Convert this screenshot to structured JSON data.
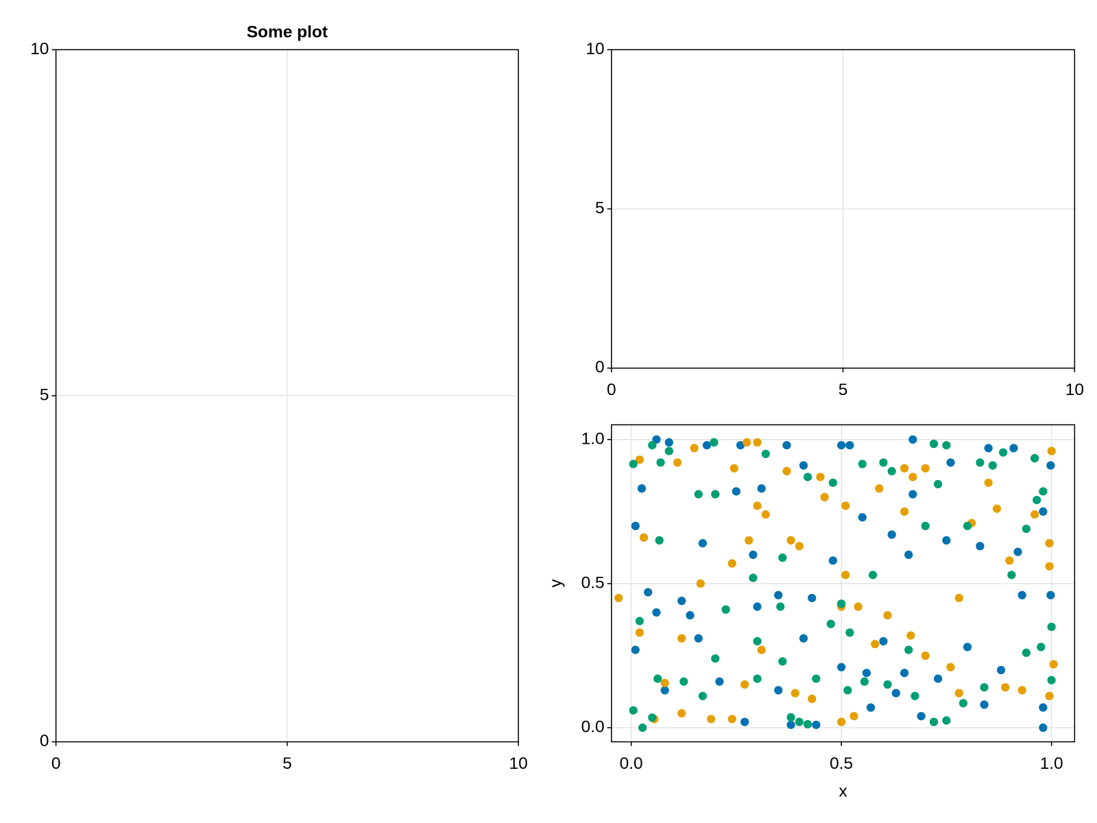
{
  "chart_data": [
    {
      "type": "scatter",
      "title": "Some plot",
      "xlim": [
        0,
        10
      ],
      "ylim": [
        0,
        10
      ],
      "xticks": [
        0,
        5,
        10
      ],
      "yticks": [
        0,
        5,
        10
      ],
      "grid": true,
      "series": []
    },
    {
      "type": "scatter",
      "xlim": [
        0,
        10
      ],
      "ylim": [
        0,
        10
      ],
      "xticks": [
        0,
        5,
        10
      ],
      "yticks": [
        0,
        5,
        10
      ],
      "grid": true,
      "series": []
    },
    {
      "type": "scatter",
      "x_label": "x",
      "y_label": "y",
      "xlim": [
        -0.047,
        1.055
      ],
      "ylim": [
        -0.049,
        1.051
      ],
      "xticks": [
        {
          "value": 0,
          "label": "0.0"
        },
        {
          "value": 0.5,
          "label": "0.5"
        },
        {
          "value": 1,
          "label": "1.0"
        }
      ],
      "yticks": [
        {
          "value": 0,
          "label": "0.0"
        },
        {
          "value": 0.5,
          "label": "0.5"
        },
        {
          "value": 1,
          "label": "1.0"
        }
      ],
      "grid": true,
      "series": [
        {
          "color": "#0072b2",
          "x": [
            0.06,
            0.09,
            0.025,
            0.01,
            0.01,
            0.04,
            0.06,
            0.08,
            0.18,
            0.26,
            0.25,
            0.31,
            0.37,
            0.41,
            0.5,
            0.52,
            0.67,
            0.67,
            0.76,
            0.85,
            0.91,
            0.998,
            0.98,
            0.998,
            0.98,
            0.98,
            0.88,
            0.8,
            0.73,
            0.65,
            0.56,
            0.5,
            0.5,
            0.48,
            0.43,
            0.41,
            0.35,
            0.44,
            0.38,
            0.27,
            0.21,
            0.16,
            0.14,
            0.12,
            0.17,
            0.29,
            0.35,
            0.55,
            0.62,
            0.66,
            0.75,
            0.83,
            0.92,
            0.93,
            0.6,
            0.63,
            0.69,
            0.84,
            0.3,
            0.57
          ],
          "values": [
            1.0,
            0.99,
            0.83,
            0.7,
            0.27,
            0.47,
            0.4,
            0.13,
            0.98,
            0.98,
            0.82,
            0.83,
            0.98,
            0.91,
            0.98,
            0.98,
            1.0,
            0.81,
            0.92,
            0.97,
            0.97,
            0.91,
            0.75,
            0.46,
            0.0,
            0.07,
            0.2,
            0.28,
            0.17,
            0.19,
            0.19,
            0.21,
            0.43,
            0.58,
            0.45,
            0.31,
            0.13,
            0.01,
            0.01,
            0.02,
            0.16,
            0.31,
            0.39,
            0.44,
            0.64,
            0.6,
            0.46,
            0.73,
            0.67,
            0.6,
            0.65,
            0.63,
            0.61,
            0.46,
            0.3,
            0.12,
            0.04,
            0.08,
            0.42,
            0.07
          ]
        },
        {
          "color": "#e69f00",
          "x": [
            -0.03,
            0.02,
            0.02,
            0.03,
            0.055,
            0.11,
            0.15,
            0.2,
            0.245,
            0.275,
            0.3,
            0.3,
            0.32,
            0.37,
            0.38,
            0.4,
            0.45,
            0.46,
            0.51,
            0.5,
            0.5,
            0.53,
            0.59,
            0.65,
            0.67,
            0.65,
            0.7,
            0.81,
            0.85,
            0.87,
            0.96,
            1.0,
            0.995,
            0.995,
            1.005,
            0.995,
            0.93,
            0.89,
            0.78,
            0.76,
            0.7,
            0.665,
            0.61,
            0.58,
            0.54,
            0.51,
            0.43,
            0.39,
            0.31,
            0.27,
            0.24,
            0.19,
            0.12,
            0.08,
            0.12,
            0.165,
            0.24,
            0.28,
            0.78,
            0.9
          ],
          "values": [
            0.45,
            0.93,
            0.33,
            0.66,
            0.03,
            0.92,
            0.97,
            0.81,
            0.9,
            0.99,
            0.99,
            0.77,
            0.74,
            0.89,
            0.65,
            0.63,
            0.87,
            0.8,
            0.77,
            0.42,
            0.02,
            0.04,
            0.83,
            0.9,
            0.87,
            0.75,
            0.9,
            0.71,
            0.85,
            0.76,
            0.74,
            0.96,
            0.64,
            0.56,
            0.22,
            0.11,
            0.13,
            0.14,
            0.12,
            0.21,
            0.25,
            0.32,
            0.39,
            0.29,
            0.42,
            0.53,
            0.1,
            0.12,
            0.27,
            0.15,
            0.03,
            0.03,
            0.05,
            0.155,
            0.31,
            0.5,
            0.57,
            0.65,
            0.45,
            0.58
          ]
        },
        {
          "color": "#009e73",
          "x": [
            0.005,
            0.02,
            0.005,
            0.027,
            0.05,
            0.05,
            0.07,
            0.09,
            0.063,
            0.067,
            0.16,
            0.197,
            0.2,
            0.2,
            0.225,
            0.29,
            0.3,
            0.32,
            0.36,
            0.355,
            0.36,
            0.38,
            0.4,
            0.42,
            0.42,
            0.48,
            0.475,
            0.5,
            0.52,
            0.55,
            0.575,
            0.6,
            0.62,
            0.66,
            0.7,
            0.72,
            0.75,
            0.73,
            0.8,
            0.83,
            0.86,
            0.885,
            0.96,
            0.98,
            0.965,
            0.94,
            1.0,
            1.0,
            0.975,
            0.94,
            0.905,
            0.84,
            0.79,
            0.75,
            0.72,
            0.675,
            0.61,
            0.555,
            0.515,
            0.44,
            0.3,
            0.17,
            0.125
          ],
          "values": [
            0.915,
            0.37,
            0.06,
            0.0,
            0.035,
            0.98,
            0.92,
            0.96,
            0.17,
            0.65,
            0.81,
            0.99,
            0.81,
            0.24,
            0.41,
            0.52,
            0.3,
            0.95,
            0.59,
            0.42,
            0.23,
            0.036,
            0.02,
            0.012,
            0.87,
            0.85,
            0.36,
            0.43,
            0.33,
            0.915,
            0.53,
            0.92,
            0.89,
            0.27,
            0.7,
            0.985,
            0.98,
            0.845,
            0.7,
            0.92,
            0.91,
            0.955,
            0.935,
            0.82,
            0.79,
            0.69,
            0.35,
            0.165,
            0.28,
            0.26,
            0.53,
            0.14,
            0.085,
            0.025,
            0.02,
            0.11,
            0.15,
            0.16,
            0.13,
            0.17,
            0.17,
            0.11,
            0.16
          ]
        }
      ]
    }
  ]
}
